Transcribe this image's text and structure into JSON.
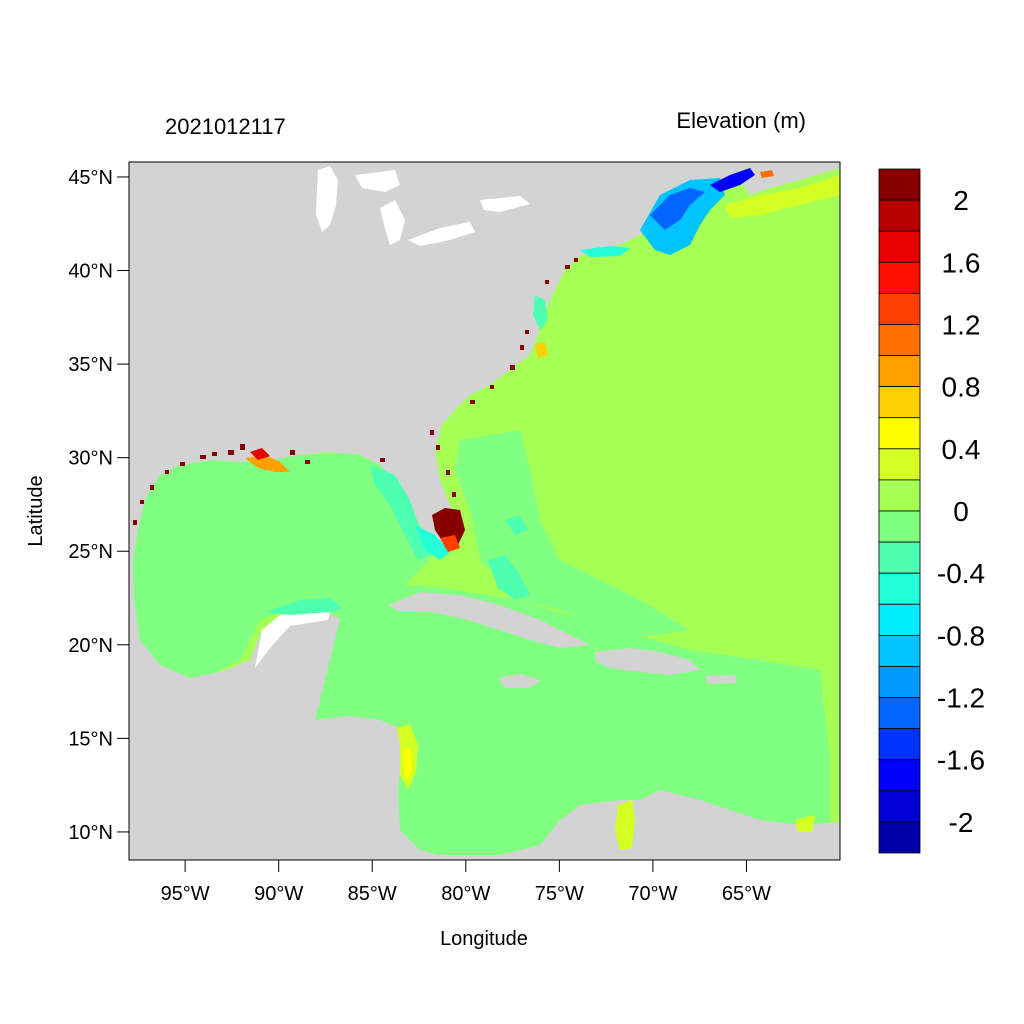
{
  "figure": {
    "timestamp": "2021012117",
    "colorbar_title": "Elevation (m)",
    "xlabel": "Longitude",
    "ylabel": "Latitude"
  },
  "map": {
    "projection": "equirectangular",
    "lon_range": [
      -98.0,
      -60.0
    ],
    "lat_range": [
      8.5,
      45.8
    ],
    "land_color": "#d3d3d3",
    "x_ticks": [
      {
        "value": -95,
        "label": "95°W"
      },
      {
        "value": -90,
        "label": "90°W"
      },
      {
        "value": -85,
        "label": "85°W"
      },
      {
        "value": -80,
        "label": "80°W"
      },
      {
        "value": -75,
        "label": "75°W"
      },
      {
        "value": -70,
        "label": "70°W"
      },
      {
        "value": -65,
        "label": "65°W"
      }
    ],
    "y_ticks": [
      {
        "value": 45,
        "label": "45°N"
      },
      {
        "value": 40,
        "label": "40°N"
      },
      {
        "value": 35,
        "label": "35°N"
      },
      {
        "value": 30,
        "label": "30°N"
      },
      {
        "value": 25,
        "label": "25°N"
      },
      {
        "value": 20,
        "label": "20°N"
      },
      {
        "value": 15,
        "label": "15°N"
      },
      {
        "value": 10,
        "label": "10°N"
      }
    ]
  },
  "colorbar": {
    "min": -2.2,
    "max": 2.2,
    "step": 0.2,
    "colors": [
      "#0000a6",
      "#0000d6",
      "#0000ff",
      "#0033ff",
      "#0066ff",
      "#0099ff",
      "#00c3ff",
      "#00eeff",
      "#22ffd9",
      "#4dffb0",
      "#80ff80",
      "#a6ff55",
      "#d4ff22",
      "#ffff00",
      "#ffcf00",
      "#ff9f00",
      "#ff6f00",
      "#ff3f00",
      "#ff0f00",
      "#e60000",
      "#b70000",
      "#870000"
    ],
    "labels": [
      {
        "value": 2,
        "label": "2"
      },
      {
        "value": 1.6,
        "label": "1.6"
      },
      {
        "value": 1.2,
        "label": "1.2"
      },
      {
        "value": 0.8,
        "label": "0.8"
      },
      {
        "value": 0.4,
        "label": "0.4"
      },
      {
        "value": 0,
        "label": "0"
      },
      {
        "value": -0.4,
        "label": "-0.4"
      },
      {
        "value": -0.8,
        "label": "-0.8"
      },
      {
        "value": -1.2,
        "label": "-1.2"
      },
      {
        "value": -1.6,
        "label": "-1.6"
      },
      {
        "value": -2,
        "label": "-2"
      }
    ]
  }
}
